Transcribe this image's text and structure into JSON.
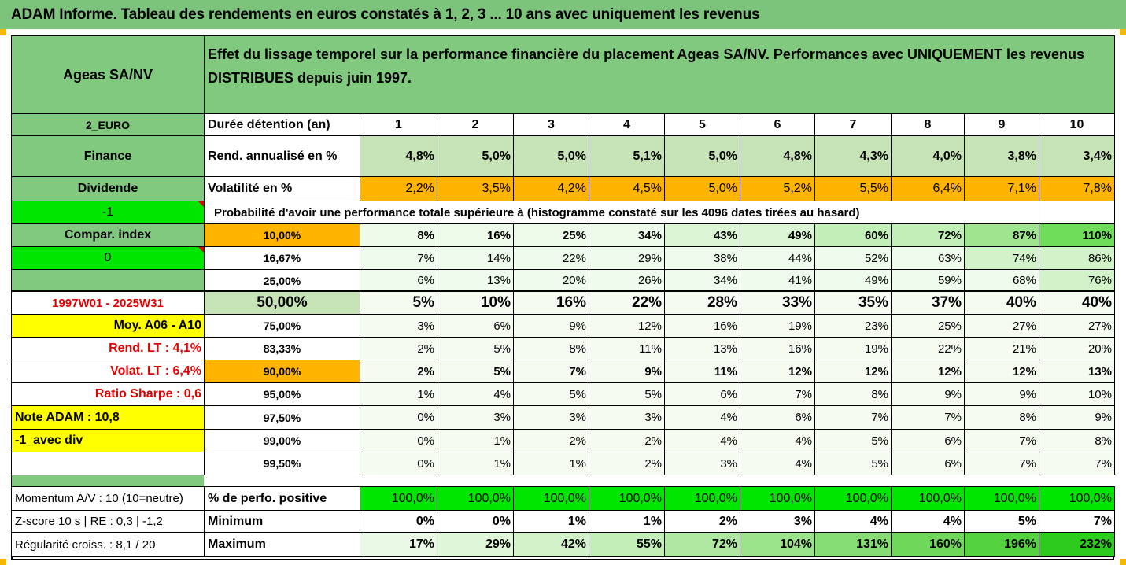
{
  "title": "ADAM Informe. Tableau des rendements en euros constatés à 1, 2, 3 ... 10 ans avec uniquement les revenus",
  "left": {
    "fund_name": "Ageas SA/NV",
    "currency_code": "2_EURO",
    "sector": "Finance",
    "category": "Dividende",
    "minus_one": "-1",
    "compar_index": "Compar. index",
    "zero": "0",
    "period": "1997W01 - 2025W31",
    "moy": "Moy. A06 - A10",
    "rend_lt": "Rend. LT :   4,1%",
    "volat_lt": "Volat. LT :   6,4%",
    "sharpe": "Ratio Sharpe :   0,6",
    "note": "Note ADAM : 10,8",
    "avec_div": "-1_avec div",
    "momentum": "Momentum A/V : 10 (10=neutre)",
    "zscore": "Z-score 10 s  |  RE : 0,3  |  -1,2",
    "regularite": "Régularité croiss. : 8,1 / 20"
  },
  "header": {
    "effect_text": "Effet du lissage temporel sur la performance financière du placement Ageas SA/NV. Performances avec UNIQUEMENT les revenus DISTRIBUES depuis juin 1997.",
    "duration_label": "Durée détention (an)",
    "years": [
      "1",
      "2",
      "3",
      "4",
      "5",
      "6",
      "7",
      "8",
      "9",
      "10"
    ]
  },
  "rend": {
    "label": "Rend. annualisé en %",
    "values": [
      "4,8%",
      "5,0%",
      "5,0%",
      "5,1%",
      "5,0%",
      "4,8%",
      "4,3%",
      "4,0%",
      "3,8%",
      "3,4%"
    ]
  },
  "vol": {
    "label": "Volatilité en %",
    "values": [
      "2,2%",
      "3,5%",
      "4,2%",
      "4,5%",
      "5,0%",
      "5,2%",
      "5,5%",
      "6,4%",
      "7,1%",
      "7,8%"
    ]
  },
  "prob_caption": "Probabilité d'avoir une performance totale supérieure à (histogramme constaté sur les 4096 dates tirées au hasard)",
  "prob_rows": [
    {
      "threshold": "10,00%",
      "values": [
        "8%",
        "16%",
        "25%",
        "34%",
        "43%",
        "49%",
        "60%",
        "72%",
        "87%",
        "110%"
      ]
    },
    {
      "threshold": "16,67%",
      "values": [
        "7%",
        "14%",
        "22%",
        "29%",
        "38%",
        "44%",
        "52%",
        "63%",
        "74%",
        "86%"
      ]
    },
    {
      "threshold": "25,00%",
      "values": [
        "6%",
        "13%",
        "20%",
        "26%",
        "34%",
        "41%",
        "49%",
        "59%",
        "68%",
        "76%"
      ]
    },
    {
      "threshold": "50,00%",
      "values": [
        "5%",
        "10%",
        "16%",
        "22%",
        "28%",
        "33%",
        "35%",
        "37%",
        "40%",
        "40%"
      ]
    },
    {
      "threshold": "75,00%",
      "values": [
        "3%",
        "6%",
        "9%",
        "12%",
        "16%",
        "19%",
        "23%",
        "25%",
        "27%",
        "27%"
      ]
    },
    {
      "threshold": "83,33%",
      "values": [
        "2%",
        "5%",
        "8%",
        "11%",
        "13%",
        "16%",
        "19%",
        "22%",
        "21%",
        "20%"
      ]
    },
    {
      "threshold": "90,00%",
      "values": [
        "2%",
        "5%",
        "7%",
        "9%",
        "11%",
        "12%",
        "12%",
        "12%",
        "12%",
        "13%"
      ]
    },
    {
      "threshold": "95,00%",
      "values": [
        "1%",
        "4%",
        "5%",
        "5%",
        "6%",
        "7%",
        "8%",
        "9%",
        "9%",
        "10%"
      ]
    },
    {
      "threshold": "97,50%",
      "values": [
        "0%",
        "3%",
        "3%",
        "3%",
        "4%",
        "6%",
        "7%",
        "7%",
        "8%",
        "9%"
      ]
    },
    {
      "threshold": "99,00%",
      "values": [
        "0%",
        "1%",
        "2%",
        "2%",
        "4%",
        "4%",
        "5%",
        "6%",
        "7%",
        "8%"
      ]
    },
    {
      "threshold": "99,50%",
      "values": [
        "0%",
        "1%",
        "1%",
        "2%",
        "3%",
        "4%",
        "5%",
        "6%",
        "7%",
        "7%"
      ]
    }
  ],
  "pos": {
    "label": "% de perfo. positive",
    "values": [
      "100,0%",
      "100,0%",
      "100,0%",
      "100,0%",
      "100,0%",
      "100,0%",
      "100,0%",
      "100,0%",
      "100,0%",
      "100,0%"
    ]
  },
  "min": {
    "label": "Minimum",
    "values": [
      "0%",
      "0%",
      "1%",
      "1%",
      "2%",
      "3%",
      "4%",
      "4%",
      "5%",
      "7%"
    ]
  },
  "max": {
    "label": "Maximum",
    "values": [
      "17%",
      "29%",
      "42%",
      "55%",
      "72%",
      "104%",
      "131%",
      "160%",
      "196%",
      "232%"
    ]
  },
  "colors": {
    "title_green": "#7cc47b",
    "header_green": "#80c97f",
    "bright_green": "#00e600",
    "yellow": "#ffff00",
    "orange": "#ffb400",
    "light_green_cell": "#c6e3b5",
    "heat_pale": "#f1fbef",
    "heat_mid": "#b7ecaa",
    "heat_strong": "#6fdc5a",
    "red_text": "#e00000"
  }
}
